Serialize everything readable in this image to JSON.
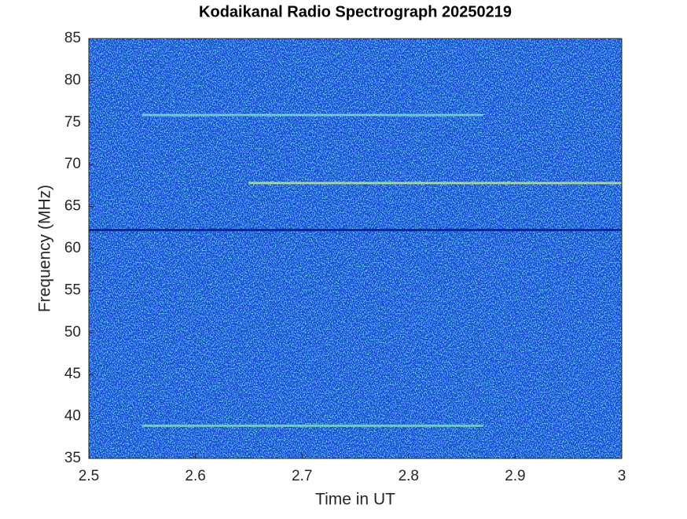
{
  "chart_data": {
    "type": "spectrogram",
    "title": "Kodaikanal Radio Spectrograph  20250219",
    "x_label": "Time in UT",
    "y_label": "Frequency (MHz)",
    "xlim": [
      2.5,
      3
    ],
    "xticks": [
      2.5,
      2.6,
      2.7,
      2.8,
      2.9,
      3
    ],
    "ylim": [
      35,
      85
    ],
    "yticks": [
      35,
      40,
      45,
      50,
      55,
      60,
      65,
      70,
      75,
      80,
      85
    ],
    "color": "#1a3fd6",
    "lines": [
      {
        "y": 75.9,
        "x": [
          2.55,
          2.87
        ],
        "color": "#7fe0c0"
      },
      {
        "y": 67.8,
        "x": [
          2.65,
          3
        ],
        "color": "#c8f060"
      },
      {
        "y": 62.2,
        "x": [
          2.5,
          3
        ],
        "color": "#06127a"
      },
      {
        "y": 38.9,
        "x": [
          2.55,
          2.87
        ],
        "color": "#7fe0c0"
      }
    ]
  }
}
